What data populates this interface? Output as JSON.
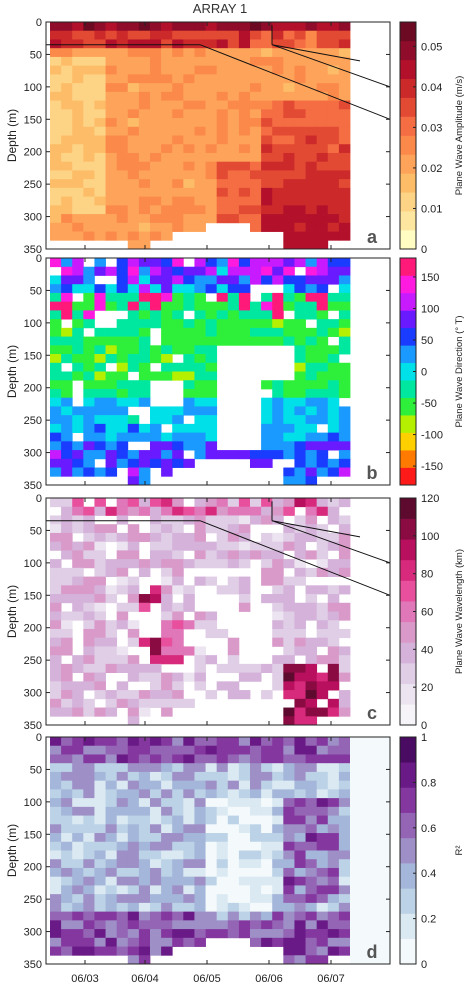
{
  "title": "ARRAY 1",
  "chart_data": [
    {
      "type": "heatmap",
      "letter": "a",
      "ylabel": "Depth (m)",
      "colorbar_label": "Plane Wave Amplitude (m/s)",
      "colorbar_ticks": [
        "0",
        "0.01",
        "0.02",
        "0.03",
        "0.04",
        "0.05"
      ],
      "colorbar_range": [
        0,
        0.056
      ],
      "colors": [
        "#fffdc4",
        "#fde7a0",
        "#fdd386",
        "#fdbd68",
        "#fda45a",
        "#fb8a4a",
        "#f46d43",
        "#e34a33",
        "#cc2a2a",
        "#b3112b",
        "#8f0d2a",
        "#6b0a22"
      ],
      "yticks": [
        "0",
        "50",
        "100",
        "150",
        "200",
        "250",
        "300",
        "350"
      ],
      "ylim": [
        0,
        350
      ],
      "show_lines": true
    },
    {
      "type": "heatmap",
      "letter": "b",
      "ylabel": "Depth (m)",
      "colorbar_label": "Plane Wave Direction (° T)",
      "colorbar_ticks": [
        "-150",
        "-100",
        "-50",
        "0",
        "50",
        "100",
        "150"
      ],
      "colorbar_range": [
        -180,
        180
      ],
      "colors": [
        "#ff1a1a",
        "#ff7a00",
        "#ffd000",
        "#b5f000",
        "#2ef03a",
        "#00e8a0",
        "#00e0e8",
        "#1a9aff",
        "#1a3cff",
        "#6a1aff",
        "#c81aff",
        "#ff1ae0",
        "#ff1a7a"
      ],
      "yticks": [
        "0",
        "50",
        "100",
        "150",
        "200",
        "250",
        "300",
        "350"
      ],
      "ylim": [
        0,
        350
      ],
      "show_lines": false
    },
    {
      "type": "heatmap",
      "letter": "c",
      "ylabel": "Depth (m)",
      "colorbar_label": "Plane Wave Wavelength (km)",
      "colorbar_ticks": [
        "0",
        "20",
        "40",
        "60",
        "80",
        "100",
        "120"
      ],
      "colorbar_range": [
        0,
        120
      ],
      "colors": [
        "#f7f4f9",
        "#ece4f0",
        "#e0cde6",
        "#d4b2da",
        "#d99ac9",
        "#df77b8",
        "#e8509e",
        "#d82a7c",
        "#b8105e",
        "#8a0a42",
        "#5e0a2e"
      ],
      "yticks": [
        "0",
        "50",
        "100",
        "150",
        "200",
        "250",
        "300",
        "350"
      ],
      "ylim": [
        0,
        350
      ],
      "show_lines": true
    },
    {
      "type": "heatmap",
      "letter": "d",
      "ylabel": "Depth (m)",
      "colorbar_label": "R²",
      "colorbar_ticks": [
        "0",
        "0.2",
        "0.4",
        "0.6",
        "0.8",
        "1"
      ],
      "colorbar_range": [
        0,
        1
      ],
      "colors": [
        "#f4fafc",
        "#dbe9f2",
        "#bcd2e6",
        "#a4b6d9",
        "#9e8fc7",
        "#9565b5",
        "#84389f",
        "#6a1a86",
        "#4a0c63"
      ],
      "yticks": [
        "0",
        "50",
        "100",
        "150",
        "200",
        "250",
        "300",
        "350"
      ],
      "ylim": [
        0,
        350
      ],
      "show_lines": false,
      "xticks": [
        "06/03",
        "06/04",
        "06/05",
        "06/06",
        "06/07"
      ]
    }
  ]
}
